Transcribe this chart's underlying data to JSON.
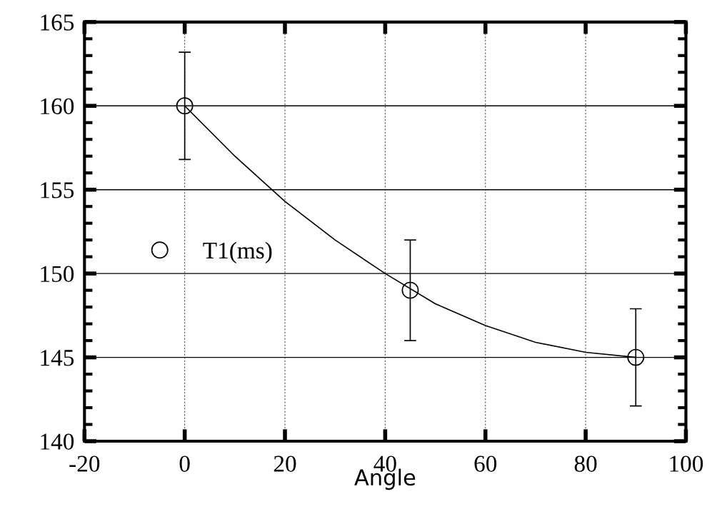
{
  "chart_data": {
    "type": "scatter",
    "xlabel": "Angle",
    "xlim": [
      -20,
      100
    ],
    "xticks": [
      -20,
      0,
      20,
      40,
      60,
      80,
      100
    ],
    "ylim": [
      140,
      165
    ],
    "yticks": [
      140,
      145,
      150,
      155,
      160,
      165
    ],
    "grid": true,
    "legend": "left",
    "marker": "circle",
    "series": [
      {
        "name": "T1(ms)",
        "color": "#000000",
        "x": [
          0,
          45,
          90
        ],
        "values": [
          160,
          149,
          145
        ],
        "errors": [
          3.2,
          3,
          2.9
        ]
      },
      {
        "type": "line",
        "color": "#000000",
        "line_style": "solid",
        "marker": "none",
        "x": [
          0,
          10,
          20,
          30,
          40,
          50,
          60,
          70,
          80,
          90
        ],
        "values": [
          160,
          157,
          154.3,
          152,
          150,
          148.2,
          146.9,
          145.9,
          145.3,
          145
        ]
      }
    ]
  }
}
